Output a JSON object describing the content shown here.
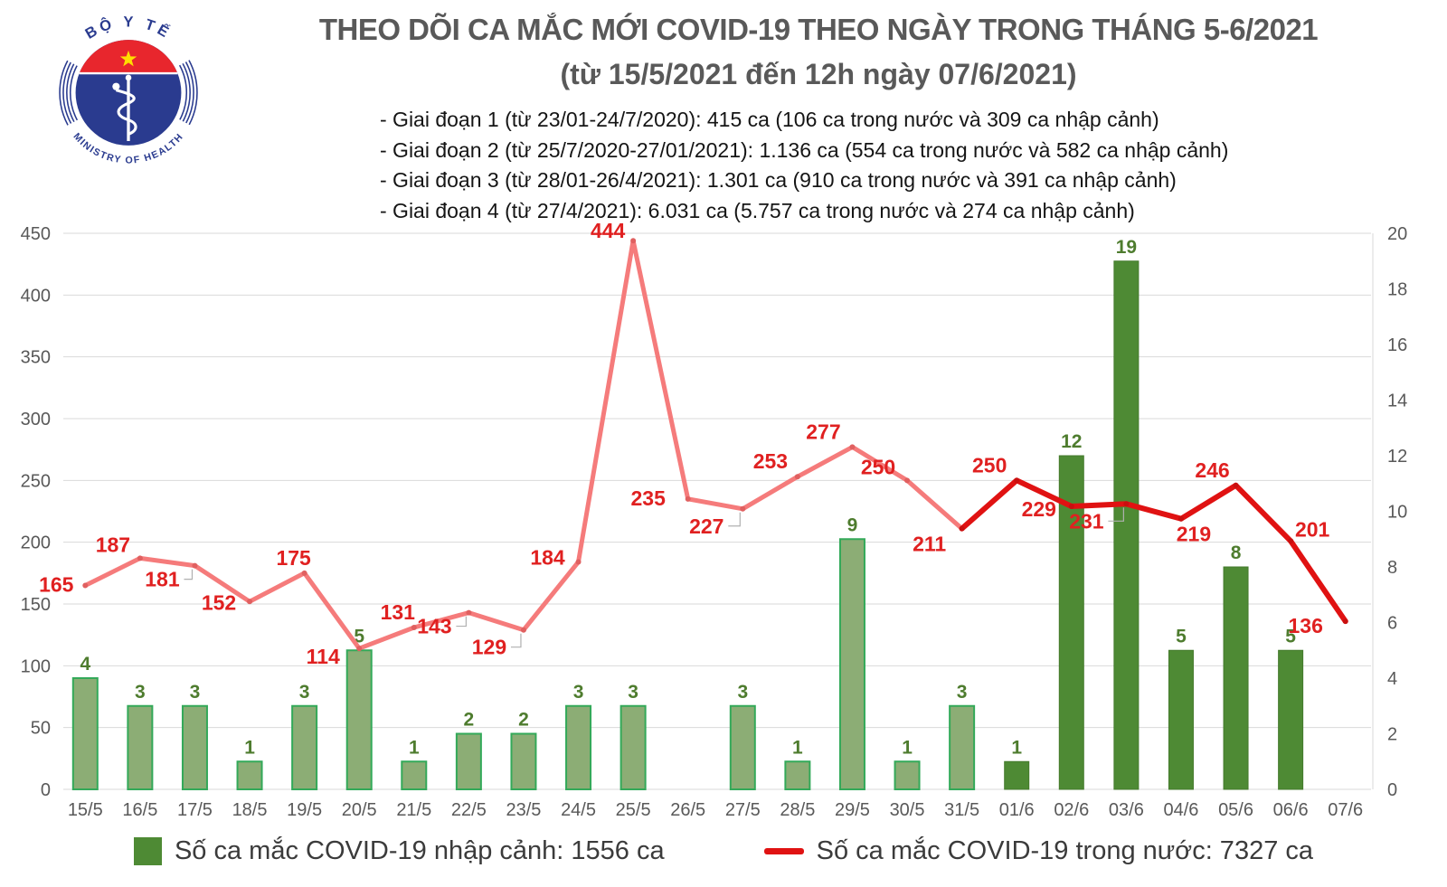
{
  "header": {
    "title": "THEO DÕI CA MẮC MỚI COVID-19 THEO NGÀY TRONG THÁNG 5-6/2021",
    "subtitle": "(từ 15/5/2021 đến 12h ngày 07/6/2021)",
    "logo": {
      "top_text": "BỘ Y TẾ",
      "bottom_text": "MINISTRY OF HEALTH"
    }
  },
  "notes": [
    "- Giai đoạn 1 (từ 23/01-24/7/2020): 415 ca (106 ca trong nước và 309 ca nhập cảnh)",
    "- Giai đoạn 2 (từ 25/7/2020-27/01/2021): 1.136 ca (554 ca trong nước và 582 ca nhập cảnh)",
    "- Giai đoạn 3 (từ 28/01-26/4/2021): 1.301 ca (910 ca trong nước và 391 ca nhập cảnh)",
    "- Giai đoạn 4 (từ 27/4/2021): 6.031 ca (5.757 ca trong nước và 274 ca nhập cảnh)"
  ],
  "legend": {
    "bars_label": "Số ca mắc COVID-19 nhập cảnh: 1556 ca",
    "line_label": "Số ca mắc COVID-19 trong nước: 7327 ca"
  },
  "chart_data": {
    "type": "combo bar+line",
    "title": "THEO DÕI CA MẮC MỚI COVID-19 THEO NGÀY TRONG THÁNG 5-6/2021",
    "categories": [
      "15/5",
      "16/5",
      "17/5",
      "18/5",
      "19/5",
      "20/5",
      "21/5",
      "22/5",
      "23/5",
      "24/5",
      "25/5",
      "26/5",
      "27/5",
      "28/5",
      "29/5",
      "30/5",
      "31/5",
      "01/6",
      "02/6",
      "03/6",
      "04/6",
      "05/6",
      "06/6",
      "07/6"
    ],
    "series": [
      {
        "name": "Số ca mắc COVID-19 nhập cảnh",
        "type": "bar",
        "axis": "right",
        "values": [
          4,
          3,
          3,
          1,
          3,
          5,
          1,
          2,
          2,
          3,
          3,
          null,
          3,
          1,
          9,
          1,
          3,
          1,
          12,
          19,
          5,
          8,
          5,
          null
        ]
      },
      {
        "name": "Số ca mắc COVID-19 trong nước",
        "type": "line",
        "axis": "left",
        "values": [
          165,
          187,
          181,
          152,
          175,
          114,
          131,
          143,
          129,
          184,
          444,
          235,
          227,
          253,
          277,
          250,
          211,
          250,
          229,
          231,
          219,
          246,
          201,
          136
        ]
      }
    ],
    "left_axis": {
      "min": 0,
      "max": 450,
      "step": 50
    },
    "right_axis": {
      "min": 0,
      "max": 20,
      "step": 2
    },
    "grid": true,
    "legend_position": "bottom",
    "style_split": {
      "june_start_index": 17,
      "line_dark_from_index": 16
    },
    "line_label_offsets": [
      [
        -32,
        0,
        0
      ],
      [
        -30,
        -14,
        0
      ],
      [
        -36,
        16,
        1
      ],
      [
        -34,
        2,
        0
      ],
      [
        -12,
        -16,
        0
      ],
      [
        -40,
        10,
        0
      ],
      [
        -18,
        -16,
        0
      ],
      [
        -38,
        16,
        1
      ],
      [
        -38,
        20,
        1
      ],
      [
        -34,
        -4,
        0
      ],
      [
        -28,
        -10,
        0
      ],
      [
        -44,
        0,
        0
      ],
      [
        -40,
        20,
        1
      ],
      [
        -30,
        -16,
        0
      ],
      [
        -32,
        -16,
        0
      ],
      [
        -32,
        -14,
        0
      ],
      [
        -36,
        18,
        0
      ],
      [
        -30,
        -16,
        0
      ],
      [
        -36,
        4,
        0
      ],
      [
        -44,
        20,
        1
      ],
      [
        14,
        18,
        0
      ],
      [
        -26,
        -16,
        0
      ],
      [
        24,
        -12,
        0
      ],
      [
        -44,
        6,
        0
      ]
    ]
  },
  "colors": {
    "bar_light_fill": "#8cad75",
    "bar_light_border": "#33a959",
    "bar_dark_fill": "#4e8a34",
    "bar_dark_border": "#447a2c",
    "bar_label": "#4e7c2e",
    "line_light": "#f57b7b",
    "line_dark": "#e01212",
    "line_label": "#e02020",
    "dot_light": "#e06060",
    "dot_dark": "#c90f0f",
    "leader": "#b0b0b0",
    "axis_label": "#595959",
    "grid": "#d9d9d9",
    "logo_blue": "#2a3b8f",
    "logo_red": "#e8262d",
    "logo_star": "#ffde00"
  }
}
